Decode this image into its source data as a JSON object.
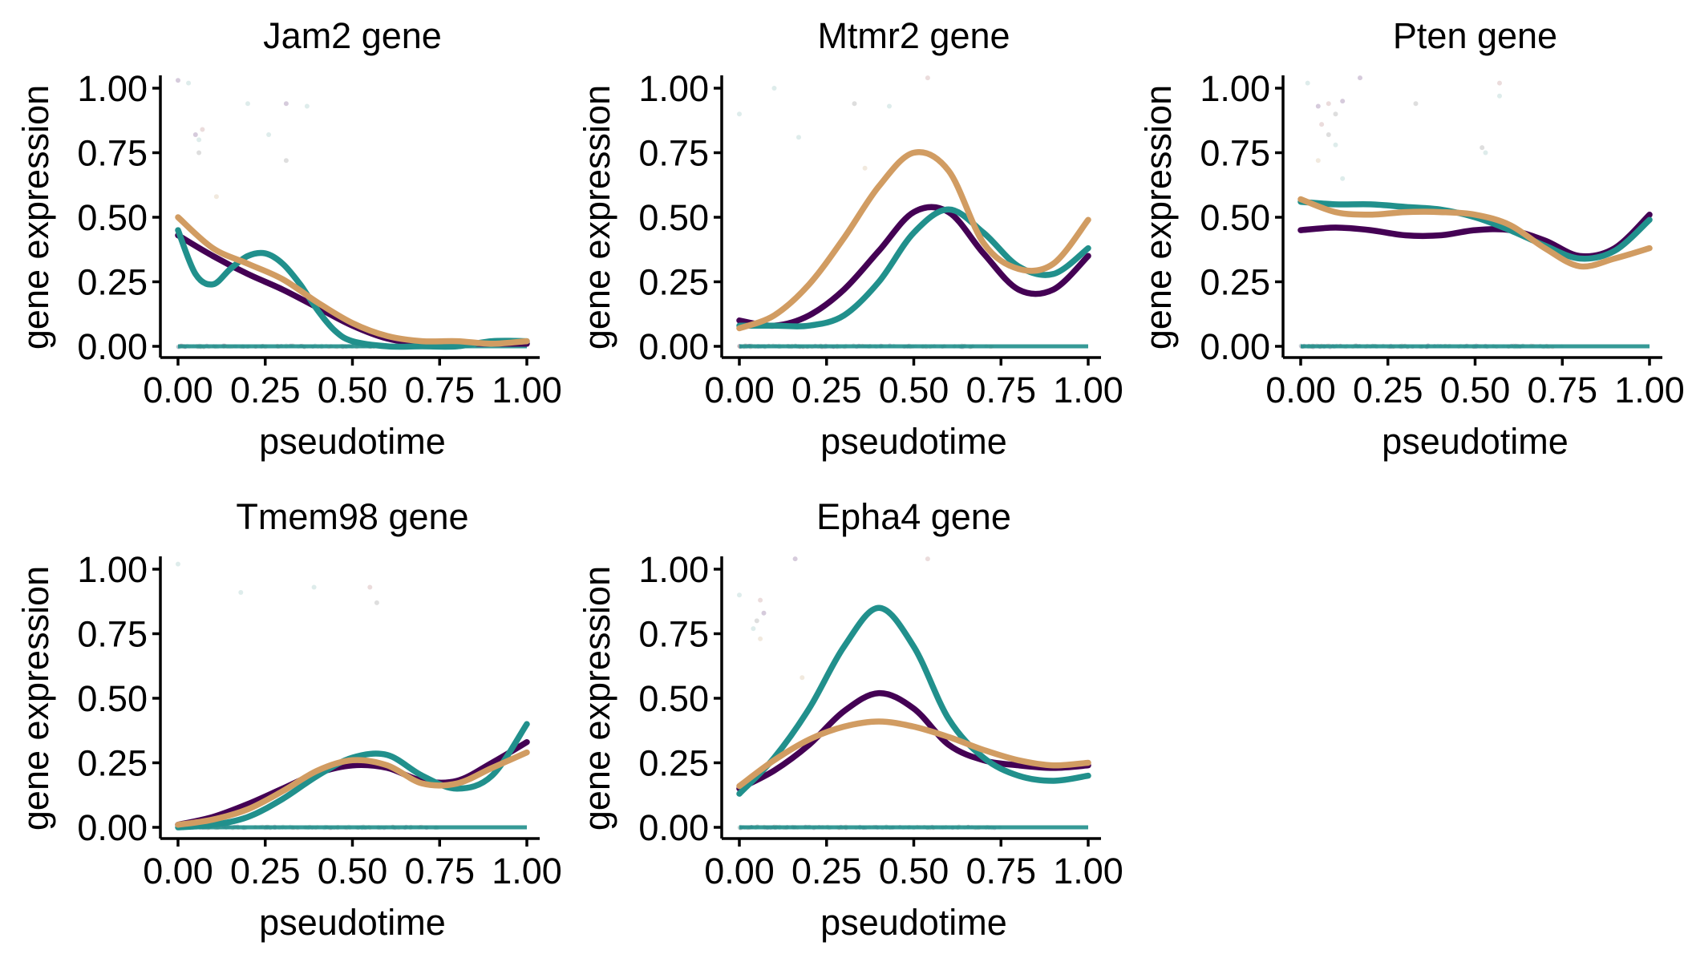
{
  "chart_data": [
    {
      "type": "line",
      "title": "Jam2 gene",
      "xlabel": "pseudotime",
      "ylabel": "gene expression",
      "xlim": [
        0,
        1
      ],
      "ylim": [
        0,
        1
      ],
      "x_ticks": [
        "0.00",
        "0.25",
        "0.50",
        "0.75",
        "1.00"
      ],
      "y_ticks": [
        "0.00",
        "0.25",
        "0.50",
        "0.75",
        "1.00"
      ],
      "series": [
        {
          "color": "#440154",
          "x": [
            0,
            0.1,
            0.2,
            0.3,
            0.4,
            0.5,
            0.6,
            0.7,
            0.8,
            0.9,
            1.0
          ],
          "values": [
            0.43,
            0.35,
            0.28,
            0.22,
            0.15,
            0.08,
            0.03,
            0.01,
            0.01,
            0.01,
            0.01
          ]
        },
        {
          "color": "#21908C",
          "x": [
            0,
            0.05,
            0.1,
            0.15,
            0.2,
            0.25,
            0.3,
            0.35,
            0.4,
            0.45,
            0.5,
            0.6,
            0.7,
            0.8,
            0.9,
            1.0
          ],
          "values": [
            0.45,
            0.28,
            0.24,
            0.3,
            0.35,
            0.36,
            0.32,
            0.24,
            0.14,
            0.06,
            0.02,
            0.0,
            0.0,
            0.0,
            0.02,
            0.02
          ]
        },
        {
          "color": "#D19C62",
          "x": [
            0,
            0.1,
            0.2,
            0.3,
            0.4,
            0.5,
            0.6,
            0.7,
            0.8,
            0.9,
            1.0
          ],
          "values": [
            0.5,
            0.38,
            0.32,
            0.26,
            0.17,
            0.09,
            0.04,
            0.02,
            0.02,
            0.01,
            0.02
          ]
        }
      ],
      "points": [
        [
          0.0,
          1.03,
          "#8a6a9a"
        ],
        [
          0.03,
          1.02,
          "#a0c9c5"
        ],
        [
          0.05,
          0.82,
          "#8a6a9a"
        ],
        [
          0.06,
          0.8,
          "#a0c9c5"
        ],
        [
          0.07,
          0.84,
          "#c79a9a"
        ],
        [
          0.06,
          0.75,
          "#a0a0a0"
        ],
        [
          0.11,
          0.58,
          "#d8c0a0"
        ],
        [
          0.2,
          0.94,
          "#a0c9c5"
        ],
        [
          0.26,
          0.82,
          "#a0c9c5"
        ],
        [
          0.31,
          0.94,
          "#8a6a9a"
        ],
        [
          0.37,
          0.93,
          "#a0c9c5"
        ],
        [
          0.31,
          0.72,
          "#a0a0a0"
        ]
      ]
    },
    {
      "type": "line",
      "title": "Mtmr2 gene",
      "xlabel": "pseudotime",
      "ylabel": "gene expression",
      "xlim": [
        0,
        1
      ],
      "ylim": [
        0,
        1
      ],
      "x_ticks": [
        "0.00",
        "0.25",
        "0.50",
        "0.75",
        "1.00"
      ],
      "y_ticks": [
        "0.00",
        "0.25",
        "0.50",
        "0.75",
        "1.00"
      ],
      "series": [
        {
          "color": "#440154",
          "x": [
            0,
            0.1,
            0.2,
            0.3,
            0.4,
            0.5,
            0.6,
            0.7,
            0.8,
            0.9,
            1.0
          ],
          "values": [
            0.1,
            0.08,
            0.12,
            0.22,
            0.37,
            0.52,
            0.52,
            0.36,
            0.22,
            0.22,
            0.35
          ]
        },
        {
          "color": "#21908C",
          "x": [
            0,
            0.1,
            0.2,
            0.3,
            0.4,
            0.5,
            0.6,
            0.7,
            0.8,
            0.9,
            1.0
          ],
          "values": [
            0.08,
            0.08,
            0.08,
            0.12,
            0.25,
            0.44,
            0.53,
            0.44,
            0.31,
            0.28,
            0.38
          ]
        },
        {
          "color": "#D19C62",
          "x": [
            0,
            0.1,
            0.2,
            0.3,
            0.4,
            0.5,
            0.6,
            0.7,
            0.8,
            0.9,
            1.0
          ],
          "values": [
            0.07,
            0.12,
            0.24,
            0.42,
            0.62,
            0.75,
            0.68,
            0.4,
            0.3,
            0.32,
            0.49
          ]
        }
      ],
      "points": [
        [
          0.0,
          0.9,
          "#a0c9c5"
        ],
        [
          0.1,
          1.0,
          "#a0c9c5"
        ],
        [
          0.17,
          0.81,
          "#a0c9c5"
        ],
        [
          0.33,
          0.94,
          "#a0a0a0"
        ],
        [
          0.43,
          0.93,
          "#a0c9c5"
        ],
        [
          0.54,
          1.04,
          "#c79a9a"
        ],
        [
          0.36,
          0.69,
          "#d8c0a0"
        ]
      ]
    },
    {
      "type": "line",
      "title": "Pten gene",
      "xlabel": "pseudotime",
      "ylabel": "gene expression",
      "xlim": [
        0,
        1
      ],
      "ylim": [
        0,
        1
      ],
      "x_ticks": [
        "0.00",
        "0.25",
        "0.50",
        "0.75",
        "1.00"
      ],
      "y_ticks": [
        "0.00",
        "0.25",
        "0.50",
        "0.75",
        "1.00"
      ],
      "series": [
        {
          "color": "#440154",
          "x": [
            0,
            0.1,
            0.2,
            0.3,
            0.4,
            0.5,
            0.6,
            0.7,
            0.8,
            0.9,
            1.0
          ],
          "values": [
            0.45,
            0.46,
            0.45,
            0.43,
            0.43,
            0.45,
            0.45,
            0.41,
            0.35,
            0.38,
            0.51
          ]
        },
        {
          "color": "#21908C",
          "x": [
            0,
            0.1,
            0.2,
            0.3,
            0.4,
            0.5,
            0.6,
            0.7,
            0.8,
            0.9,
            1.0
          ],
          "values": [
            0.56,
            0.55,
            0.55,
            0.54,
            0.53,
            0.5,
            0.45,
            0.39,
            0.34,
            0.37,
            0.49
          ]
        },
        {
          "color": "#D19C62",
          "x": [
            0,
            0.1,
            0.2,
            0.3,
            0.4,
            0.5,
            0.6,
            0.7,
            0.8,
            0.9,
            1.0
          ],
          "values": [
            0.57,
            0.52,
            0.51,
            0.52,
            0.52,
            0.51,
            0.47,
            0.38,
            0.31,
            0.34,
            0.38
          ]
        }
      ],
      "points": [
        [
          0.02,
          1.02,
          "#a0c9c5"
        ],
        [
          0.05,
          0.93,
          "#8a6a9a"
        ],
        [
          0.08,
          0.94,
          "#c79a9a"
        ],
        [
          0.1,
          0.9,
          "#a0a0a0"
        ],
        [
          0.12,
          0.95,
          "#8a6a9a"
        ],
        [
          0.06,
          0.86,
          "#c79a9a"
        ],
        [
          0.08,
          0.82,
          "#a0a0a0"
        ],
        [
          0.1,
          0.78,
          "#a0c9c5"
        ],
        [
          0.05,
          0.72,
          "#d8c0a0"
        ],
        [
          0.12,
          0.65,
          "#a0c9c5"
        ],
        [
          0.17,
          1.04,
          "#8a6a9a"
        ],
        [
          0.33,
          0.94,
          "#a0a0a0"
        ],
        [
          0.52,
          0.77,
          "#a0a0a0"
        ],
        [
          0.53,
          0.75,
          "#a0c9c5"
        ],
        [
          0.57,
          1.02,
          "#c79a9a"
        ],
        [
          0.57,
          0.97,
          "#a0c9c5"
        ]
      ]
    },
    {
      "type": "line",
      "title": "Tmem98 gene",
      "xlabel": "pseudotime",
      "ylabel": "gene expression",
      "xlim": [
        0,
        1
      ],
      "ylim": [
        0,
        1
      ],
      "x_ticks": [
        "0.00",
        "0.25",
        "0.50",
        "0.75",
        "1.00"
      ],
      "y_ticks": [
        "0.00",
        "0.25",
        "0.50",
        "0.75",
        "1.00"
      ],
      "series": [
        {
          "color": "#440154",
          "x": [
            0,
            0.1,
            0.2,
            0.3,
            0.4,
            0.5,
            0.6,
            0.7,
            0.8,
            0.9,
            1.0
          ],
          "values": [
            0.01,
            0.04,
            0.09,
            0.15,
            0.21,
            0.24,
            0.23,
            0.18,
            0.18,
            0.25,
            0.33
          ]
        },
        {
          "color": "#21908C",
          "x": [
            0,
            0.1,
            0.2,
            0.3,
            0.4,
            0.5,
            0.6,
            0.7,
            0.8,
            0.9,
            1.0
          ],
          "values": [
            0.0,
            0.01,
            0.04,
            0.11,
            0.2,
            0.27,
            0.28,
            0.2,
            0.15,
            0.2,
            0.4
          ]
        },
        {
          "color": "#D19C62",
          "x": [
            0,
            0.1,
            0.2,
            0.3,
            0.4,
            0.5,
            0.6,
            0.7,
            0.8,
            0.9,
            1.0
          ],
          "values": [
            0.01,
            0.03,
            0.07,
            0.14,
            0.22,
            0.26,
            0.24,
            0.17,
            0.17,
            0.23,
            0.29
          ]
        }
      ],
      "points": [
        [
          0.0,
          1.02,
          "#a0c9c5"
        ],
        [
          0.18,
          0.91,
          "#a0c9c5"
        ],
        [
          0.39,
          0.93,
          "#a0c9c5"
        ],
        [
          0.55,
          0.93,
          "#c79a9a"
        ],
        [
          0.57,
          0.87,
          "#a0a0a0"
        ]
      ]
    },
    {
      "type": "line",
      "title": "Epha4 gene",
      "xlabel": "pseudotime",
      "ylabel": "gene expression",
      "xlim": [
        0,
        1
      ],
      "ylim": [
        0,
        1
      ],
      "x_ticks": [
        "0.00",
        "0.25",
        "0.50",
        "0.75",
        "1.00"
      ],
      "y_ticks": [
        "0.00",
        "0.25",
        "0.50",
        "0.75",
        "1.00"
      ],
      "series": [
        {
          "color": "#440154",
          "x": [
            0,
            0.1,
            0.2,
            0.3,
            0.4,
            0.5,
            0.6,
            0.7,
            0.8,
            0.9,
            1.0
          ],
          "values": [
            0.15,
            0.22,
            0.32,
            0.45,
            0.52,
            0.46,
            0.32,
            0.26,
            0.24,
            0.23,
            0.24
          ]
        },
        {
          "color": "#21908C",
          "x": [
            0,
            0.1,
            0.2,
            0.3,
            0.4,
            0.5,
            0.6,
            0.7,
            0.8,
            0.9,
            1.0
          ],
          "values": [
            0.13,
            0.27,
            0.46,
            0.7,
            0.85,
            0.7,
            0.42,
            0.27,
            0.2,
            0.18,
            0.2
          ]
        },
        {
          "color": "#D19C62",
          "x": [
            0,
            0.1,
            0.2,
            0.3,
            0.4,
            0.5,
            0.6,
            0.7,
            0.8,
            0.9,
            1.0
          ],
          "values": [
            0.16,
            0.26,
            0.34,
            0.39,
            0.41,
            0.39,
            0.35,
            0.3,
            0.26,
            0.24,
            0.25
          ]
        }
      ],
      "points": [
        [
          0.0,
          0.9,
          "#a0c9c5"
        ],
        [
          0.06,
          0.88,
          "#c79a9a"
        ],
        [
          0.07,
          0.83,
          "#8a6a9a"
        ],
        [
          0.05,
          0.8,
          "#a0a0a0"
        ],
        [
          0.04,
          0.77,
          "#a0c9c5"
        ],
        [
          0.06,
          0.73,
          "#d8c0a0"
        ],
        [
          0.16,
          1.04,
          "#8a6a9a"
        ],
        [
          0.18,
          0.58,
          "#d8c0a0"
        ],
        [
          0.54,
          1.04,
          "#c79a9a"
        ]
      ]
    }
  ]
}
